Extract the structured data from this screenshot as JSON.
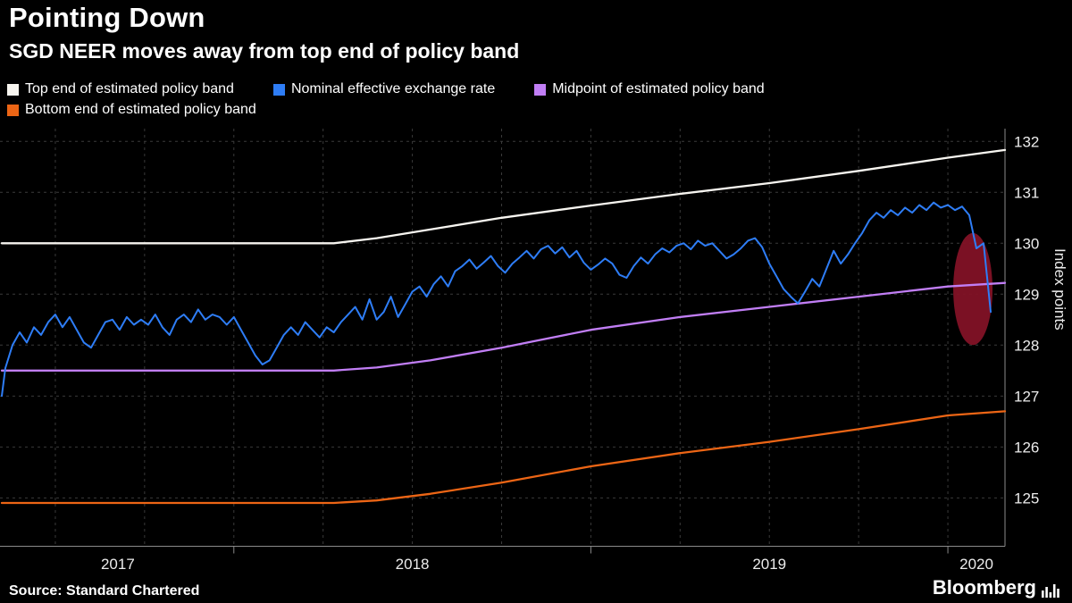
{
  "source": {
    "label": "Source: Standard Chartered"
  },
  "branding": {
    "logo_text": "Bloomberg"
  },
  "legend": [
    {
      "id": "top-band",
      "label": "Top end of estimated policy band",
      "color": "#f7f5f0"
    },
    {
      "id": "neer",
      "label": "Nominal effective exchange rate",
      "color": "#2e7df6"
    },
    {
      "id": "midpoint",
      "label": "Midpoint of estimated policy band",
      "color": "#c17ef5"
    },
    {
      "id": "bottom-band",
      "label": "Bottom end of estimated policy band",
      "color": "#ec6515"
    }
  ],
  "chart_data": {
    "type": "line",
    "title": "Pointing Down",
    "subtitle": "SGD NEER moves away from top end of policy band",
    "ylabel": "Index points",
    "xlabel": "",
    "x_domain": [
      2017.35,
      2020.16
    ],
    "y_domain": [
      124.05,
      132.25
    ],
    "y_ticks": [
      125,
      126,
      127,
      128,
      129,
      130,
      131,
      132
    ],
    "x_grid": {
      "from": 2017.5,
      "to": 2020.0,
      "step": 0.25
    },
    "x_year_ticks": [
      2018,
      2019,
      2020
    ],
    "x_labels": [
      {
        "label": "2017",
        "center": 2017.675
      },
      {
        "label": "2018",
        "center": 2018.5
      },
      {
        "label": "2019",
        "center": 2019.5
      },
      {
        "label": "2020",
        "center": 2020.08
      }
    ],
    "grid": true,
    "legend_position": "top-left",
    "highlight": {
      "type": "ellipse",
      "x": 2020.07,
      "y": 129.1,
      "rx": 0.055,
      "ry": 1.1,
      "color": "#821226",
      "opacity": 0.95
    },
    "series": [
      {
        "id": "top-band",
        "name": "Top end of estimated policy band",
        "color": "#f7f5f0",
        "width": 2.3,
        "points": [
          [
            2017.35,
            130.0
          ],
          [
            2018.28,
            130.0
          ],
          [
            2018.4,
            130.1
          ],
          [
            2018.55,
            130.27
          ],
          [
            2018.75,
            130.5
          ],
          [
            2019.0,
            130.74
          ],
          [
            2019.25,
            130.97
          ],
          [
            2019.5,
            131.18
          ],
          [
            2019.75,
            131.42
          ],
          [
            2020.0,
            131.68
          ],
          [
            2020.16,
            131.83
          ]
        ]
      },
      {
        "id": "midpoint",
        "name": "Midpoint of estimated policy band",
        "color": "#c17ef5",
        "width": 2.3,
        "points": [
          [
            2017.35,
            127.5
          ],
          [
            2018.28,
            127.5
          ],
          [
            2018.4,
            127.56
          ],
          [
            2018.55,
            127.7
          ],
          [
            2018.75,
            127.95
          ],
          [
            2019.0,
            128.3
          ],
          [
            2019.25,
            128.55
          ],
          [
            2019.5,
            128.75
          ],
          [
            2019.75,
            128.95
          ],
          [
            2020.0,
            129.15
          ],
          [
            2020.16,
            129.22
          ]
        ]
      },
      {
        "id": "bottom-band",
        "name": "Bottom end of estimated policy band",
        "color": "#ec6515",
        "width": 2.3,
        "points": [
          [
            2017.35,
            124.9
          ],
          [
            2018.28,
            124.9
          ],
          [
            2018.4,
            124.95
          ],
          [
            2018.55,
            125.08
          ],
          [
            2018.75,
            125.3
          ],
          [
            2019.0,
            125.62
          ],
          [
            2019.25,
            125.88
          ],
          [
            2019.5,
            126.1
          ],
          [
            2019.75,
            126.35
          ],
          [
            2020.0,
            126.62
          ],
          [
            2020.16,
            126.7
          ]
        ]
      },
      {
        "id": "neer",
        "name": "Nominal effective exchange rate",
        "color": "#2e7df6",
        "width": 2,
        "points": [
          [
            2017.35,
            127.0
          ],
          [
            2017.36,
            127.55
          ],
          [
            2017.38,
            128.0
          ],
          [
            2017.4,
            128.25
          ],
          [
            2017.42,
            128.05
          ],
          [
            2017.44,
            128.35
          ],
          [
            2017.46,
            128.2
          ],
          [
            2017.48,
            128.45
          ],
          [
            2017.5,
            128.6
          ],
          [
            2017.52,
            128.35
          ],
          [
            2017.54,
            128.55
          ],
          [
            2017.56,
            128.3
          ],
          [
            2017.58,
            128.05
          ],
          [
            2017.6,
            127.95
          ],
          [
            2017.62,
            128.2
          ],
          [
            2017.64,
            128.45
          ],
          [
            2017.66,
            128.5
          ],
          [
            2017.68,
            128.3
          ],
          [
            2017.7,
            128.55
          ],
          [
            2017.72,
            128.4
          ],
          [
            2017.74,
            128.5
          ],
          [
            2017.76,
            128.4
          ],
          [
            2017.78,
            128.6
          ],
          [
            2017.8,
            128.35
          ],
          [
            2017.82,
            128.2
          ],
          [
            2017.84,
            128.5
          ],
          [
            2017.86,
            128.6
          ],
          [
            2017.88,
            128.45
          ],
          [
            2017.9,
            128.7
          ],
          [
            2017.92,
            128.5
          ],
          [
            2017.94,
            128.6
          ],
          [
            2017.96,
            128.55
          ],
          [
            2017.98,
            128.4
          ],
          [
            2018.0,
            128.55
          ],
          [
            2018.02,
            128.3
          ],
          [
            2018.04,
            128.05
          ],
          [
            2018.06,
            127.8
          ],
          [
            2018.08,
            127.62
          ],
          [
            2018.1,
            127.7
          ],
          [
            2018.12,
            127.95
          ],
          [
            2018.14,
            128.2
          ],
          [
            2018.16,
            128.35
          ],
          [
            2018.18,
            128.2
          ],
          [
            2018.2,
            128.45
          ],
          [
            2018.22,
            128.3
          ],
          [
            2018.24,
            128.15
          ],
          [
            2018.26,
            128.35
          ],
          [
            2018.28,
            128.25
          ],
          [
            2018.3,
            128.45
          ],
          [
            2018.32,
            128.6
          ],
          [
            2018.34,
            128.75
          ],
          [
            2018.36,
            128.5
          ],
          [
            2018.38,
            128.9
          ],
          [
            2018.4,
            128.5
          ],
          [
            2018.42,
            128.65
          ],
          [
            2018.44,
            128.95
          ],
          [
            2018.46,
            128.55
          ],
          [
            2018.48,
            128.8
          ],
          [
            2018.5,
            129.05
          ],
          [
            2018.52,
            129.15
          ],
          [
            2018.54,
            128.95
          ],
          [
            2018.56,
            129.2
          ],
          [
            2018.58,
            129.35
          ],
          [
            2018.6,
            129.15
          ],
          [
            2018.62,
            129.45
          ],
          [
            2018.64,
            129.55
          ],
          [
            2018.66,
            129.68
          ],
          [
            2018.68,
            129.5
          ],
          [
            2018.7,
            129.62
          ],
          [
            2018.72,
            129.75
          ],
          [
            2018.74,
            129.55
          ],
          [
            2018.76,
            129.42
          ],
          [
            2018.78,
            129.6
          ],
          [
            2018.8,
            129.72
          ],
          [
            2018.82,
            129.85
          ],
          [
            2018.84,
            129.7
          ],
          [
            2018.86,
            129.88
          ],
          [
            2018.88,
            129.95
          ],
          [
            2018.9,
            129.8
          ],
          [
            2018.92,
            129.92
          ],
          [
            2018.94,
            129.72
          ],
          [
            2018.96,
            129.85
          ],
          [
            2018.98,
            129.62
          ],
          [
            2019.0,
            129.48
          ],
          [
            2019.02,
            129.58
          ],
          [
            2019.04,
            129.7
          ],
          [
            2019.06,
            129.6
          ],
          [
            2019.08,
            129.38
          ],
          [
            2019.1,
            129.32
          ],
          [
            2019.12,
            129.55
          ],
          [
            2019.14,
            129.72
          ],
          [
            2019.16,
            129.6
          ],
          [
            2019.18,
            129.78
          ],
          [
            2019.2,
            129.9
          ],
          [
            2019.22,
            129.82
          ],
          [
            2019.24,
            129.95
          ],
          [
            2019.26,
            130.0
          ],
          [
            2019.28,
            129.88
          ],
          [
            2019.3,
            130.05
          ],
          [
            2019.32,
            129.95
          ],
          [
            2019.34,
            130.0
          ],
          [
            2019.36,
            129.85
          ],
          [
            2019.38,
            129.7
          ],
          [
            2019.4,
            129.78
          ],
          [
            2019.42,
            129.9
          ],
          [
            2019.44,
            130.05
          ],
          [
            2019.46,
            130.1
          ],
          [
            2019.48,
            129.92
          ],
          [
            2019.5,
            129.6
          ],
          [
            2019.52,
            129.35
          ],
          [
            2019.54,
            129.1
          ],
          [
            2019.56,
            128.95
          ],
          [
            2019.58,
            128.82
          ],
          [
            2019.6,
            129.05
          ],
          [
            2019.62,
            129.3
          ],
          [
            2019.64,
            129.15
          ],
          [
            2019.66,
            129.5
          ],
          [
            2019.68,
            129.85
          ],
          [
            2019.7,
            129.6
          ],
          [
            2019.72,
            129.78
          ],
          [
            2019.74,
            130.0
          ],
          [
            2019.76,
            130.2
          ],
          [
            2019.78,
            130.45
          ],
          [
            2019.8,
            130.6
          ],
          [
            2019.82,
            130.5
          ],
          [
            2019.84,
            130.65
          ],
          [
            2019.86,
            130.55
          ],
          [
            2019.88,
            130.7
          ],
          [
            2019.9,
            130.6
          ],
          [
            2019.92,
            130.75
          ],
          [
            2019.94,
            130.65
          ],
          [
            2019.96,
            130.8
          ],
          [
            2019.98,
            130.7
          ],
          [
            2020.0,
            130.75
          ],
          [
            2020.02,
            130.65
          ],
          [
            2020.04,
            130.72
          ],
          [
            2020.06,
            130.55
          ],
          [
            2020.08,
            129.9
          ],
          [
            2020.1,
            130.0
          ],
          [
            2020.12,
            128.65
          ]
        ]
      }
    ]
  }
}
